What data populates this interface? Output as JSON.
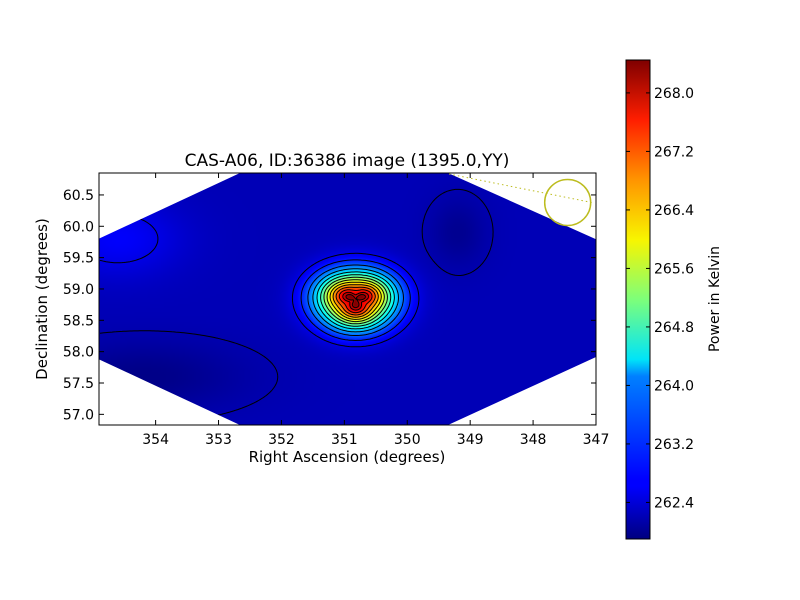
{
  "chart_data": {
    "type": "heatmap",
    "title": "CAS-A06, ID:36386 image (1395.0,YY)",
    "xlabel": "Right Ascension (degrees)",
    "ylabel": "Declination (degrees)",
    "xlim": [
      354.9,
      347.0
    ],
    "ylim": [
      56.83,
      60.85
    ],
    "x_ticks": [
      354,
      353,
      352,
      351,
      350,
      349,
      348,
      347
    ],
    "y_ticks": [
      57.0,
      57.5,
      58.0,
      58.5,
      59.0,
      59.5,
      60.0,
      60.5
    ],
    "colorbar": {
      "label": "Power in Kelvin",
      "range": [
        261.9,
        268.45
      ],
      "ticks": [
        262.4,
        263.2,
        264.0,
        264.8,
        265.6,
        266.4,
        267.2,
        268.0
      ],
      "colormap": "jet"
    },
    "source": {
      "peak_ra": 350.82,
      "peak_dec": 58.83,
      "peak_value": 268.4
    },
    "beam_marker": {
      "ra": 347.45,
      "dec": 60.38,
      "color": "#bcbc1e"
    },
    "contours": {
      "levels": [
        262.2,
        262.55,
        262.9,
        263.35,
        263.8,
        264.25,
        264.7,
        265.15,
        265.6,
        266.05,
        266.5,
        266.95,
        267.4,
        267.85,
        268.2
      ],
      "color": "#000000"
    },
    "background": {
      "value": 262.25,
      "low_region_value": 261.95,
      "high_region_value": 262.7
    },
    "grid": false,
    "legend": "none"
  }
}
